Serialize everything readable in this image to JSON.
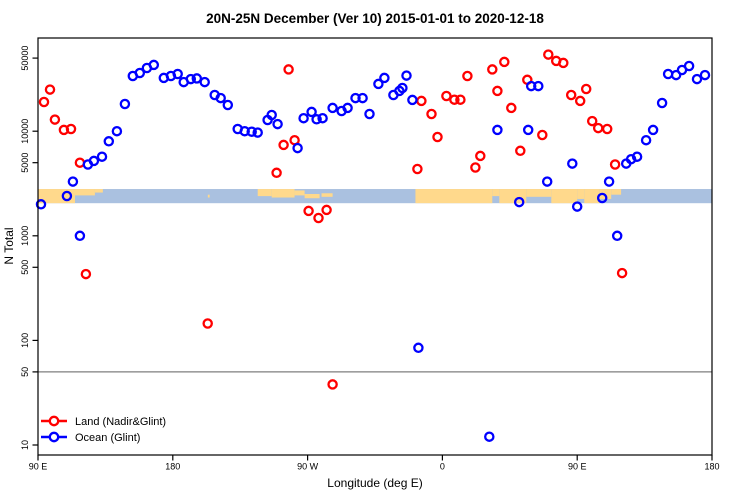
{
  "title": "20N-25N December (Ver 10)   2015-01-01 to 2020-12-18",
  "axes": {
    "x_label": "Longitude (deg E)",
    "y_label": "N Total",
    "x_ticks": [
      {
        "lon": 90,
        "label": "90 E"
      },
      {
        "lon": 180,
        "label": "180"
      },
      {
        "lon": 270,
        "label": "90 W"
      },
      {
        "lon": 360,
        "label": "0"
      },
      {
        "lon": 450,
        "label": "90 E"
      },
      {
        "lon": 540,
        "label": "180"
      }
    ],
    "y_ticks": [
      {
        "value": 50000,
        "label": "50000"
      },
      {
        "value": 10000,
        "label": "10000"
      },
      {
        "value": 5000,
        "label": "5000"
      },
      {
        "value": 1000,
        "label": "1000"
      },
      {
        "value": 500,
        "label": "500"
      },
      {
        "value": 100,
        "label": "100"
      },
      {
        "value": 50,
        "label": "50"
      },
      {
        "value": 10,
        "label": "10"
      }
    ]
  },
  "legend": [
    {
      "label": "Land (Nadir&Glint)",
      "color": "#ff0000"
    },
    {
      "label": "Ocean (Glint)",
      "color": "#0000ff"
    }
  ],
  "colors": {
    "land_series": "#ff0000",
    "ocean_series": "#0000ff",
    "band_ocean": "#aac1e0",
    "band_land": "#ffd98c",
    "ref_line": "#7f7f7f",
    "frame": "#000000"
  },
  "chart_data": {
    "type": "scatter",
    "title": "20N-25N December (Ver 10)   2015-01-01 to 2020-12-18",
    "xlabel": "Longitude (deg E)",
    "ylabel": "N Total",
    "x_axis": {
      "kind": "longitude_wrapped",
      "lon_start": 90,
      "lon_end": 540,
      "note": "continuous deg E: 90E..180..90W..0..90E..180"
    },
    "y_axis": {
      "kind": "log10",
      "min": 8,
      "max": 78000
    },
    "reference_line_y": 50,
    "map_band": {
      "description": "20N-25N latitude land/ocean strip",
      "value_top": 2800,
      "value_bottom": 2050,
      "land_segments": [
        {
          "lon0": 90,
          "lon1": 114.7,
          "top": 0,
          "bot": 1
        },
        {
          "lon0": 114.7,
          "lon1": 128,
          "top": 0,
          "bot": 0.45
        },
        {
          "lon0": 128,
          "lon1": 133.3,
          "top": 0,
          "bot": 0.25
        },
        {
          "lon0": 203.4,
          "lon1": 204.6,
          "top": 0.4,
          "bot": 0.6
        },
        {
          "lon0": 236.7,
          "lon1": 246,
          "top": 0,
          "bot": 0.5
        },
        {
          "lon0": 246,
          "lon1": 261.3,
          "top": 0,
          "bot": 0.6
        },
        {
          "lon0": 261.3,
          "lon1": 268,
          "top": 0.1,
          "bot": 0.45
        },
        {
          "lon0": 268,
          "lon1": 278,
          "top": 0.35,
          "bot": 0.65
        },
        {
          "lon0": 279.3,
          "lon1": 286.7,
          "top": 0.3,
          "bot": 0.55
        },
        {
          "lon0": 342,
          "lon1": 393.3,
          "top": 0,
          "bot": 1
        },
        {
          "lon0": 393.3,
          "lon1": 398,
          "top": 0,
          "bot": 0.5
        },
        {
          "lon0": 398,
          "lon1": 416,
          "top": 0,
          "bot": 1
        },
        {
          "lon0": 416,
          "lon1": 432.7,
          "top": 0,
          "bot": 0.55
        },
        {
          "lon0": 432.7,
          "lon1": 450,
          "top": 0,
          "bot": 1
        },
        {
          "lon0": 450,
          "lon1": 454.7,
          "top": 0,
          "bot": 0.7
        },
        {
          "lon0": 454.7,
          "lon1": 464.7,
          "top": 0,
          "bot": 1
        },
        {
          "lon0": 464.7,
          "lon1": 472.7,
          "top": 0,
          "bot": 0.7
        },
        {
          "lon0": 472.7,
          "lon1": 479.3,
          "top": 0,
          "bot": 0.4
        }
      ]
    },
    "series": [
      {
        "name": "Land (Nadir&Glint)",
        "color": "#ff0000",
        "points": [
          [
            94,
            19000
          ],
          [
            98,
            25000
          ],
          [
            101.3,
            12900
          ],
          [
            107.3,
            10300
          ],
          [
            112,
            10500
          ],
          [
            118,
            5000
          ],
          [
            122,
            430
          ],
          [
            203.3,
            145
          ],
          [
            249.3,
            4000
          ],
          [
            254,
            7400
          ],
          [
            257.3,
            39000
          ],
          [
            261.3,
            8200
          ],
          [
            270.7,
            1730
          ],
          [
            277.3,
            1480
          ],
          [
            282.7,
            1770
          ],
          [
            286.7,
            38
          ],
          [
            343.3,
            4350
          ],
          [
            346,
            19500
          ],
          [
            352.7,
            14600
          ],
          [
            356.7,
            8800
          ],
          [
            362.7,
            21700
          ],
          [
            368,
            20000
          ],
          [
            372,
            20000
          ],
          [
            376.7,
            33700
          ],
          [
            382,
            4500
          ],
          [
            385.3,
            5800
          ],
          [
            393.3,
            39000
          ],
          [
            396.7,
            24300
          ],
          [
            401.3,
            46000
          ],
          [
            406,
            16700
          ],
          [
            412,
            6500
          ],
          [
            416.7,
            31000
          ],
          [
            426.7,
            9200
          ],
          [
            430.7,
            54000
          ],
          [
            436,
            47000
          ],
          [
            440.7,
            45000
          ],
          [
            446,
            22200
          ],
          [
            452,
            19500
          ],
          [
            456,
            25300
          ],
          [
            460,
            12500
          ],
          [
            464,
            10700
          ],
          [
            470,
            10500
          ],
          [
            475.3,
            4800
          ],
          [
            480,
            440
          ]
        ]
      },
      {
        "name": "Ocean (Glint)",
        "color": "#0000ff",
        "points": [
          [
            92,
            2000
          ],
          [
            109.3,
            2400
          ],
          [
            113.3,
            3300
          ],
          [
            118,
            1000
          ],
          [
            123.3,
            4800
          ],
          [
            127.3,
            5200
          ],
          [
            132.7,
            5700
          ],
          [
            137.3,
            8000
          ],
          [
            142.7,
            10000
          ],
          [
            148,
            18200
          ],
          [
            153.3,
            33700
          ],
          [
            158,
            36000
          ],
          [
            162.7,
            40200
          ],
          [
            167.3,
            43000
          ],
          [
            174,
            32300
          ],
          [
            178.7,
            33700
          ],
          [
            183.3,
            35200
          ],
          [
            187.3,
            29500
          ],
          [
            192,
            31500
          ],
          [
            196,
            32000
          ],
          [
            201.3,
            29500
          ],
          [
            208,
            22200
          ],
          [
            212,
            20700
          ],
          [
            216.7,
            17800
          ],
          [
            223.3,
            10500
          ],
          [
            228,
            10000
          ],
          [
            232.7,
            9900
          ],
          [
            236.7,
            9700
          ],
          [
            243.3,
            12800
          ],
          [
            246,
            14300
          ],
          [
            250,
            11700
          ],
          [
            263.3,
            6900
          ],
          [
            267.3,
            13300
          ],
          [
            272.7,
            15300
          ],
          [
            276,
            13000
          ],
          [
            280,
            13300
          ],
          [
            286.7,
            16700
          ],
          [
            292.7,
            15600
          ],
          [
            296.7,
            16700
          ],
          [
            302,
            20700
          ],
          [
            306.7,
            20700
          ],
          [
            311.3,
            14600
          ],
          [
            317.3,
            28300
          ],
          [
            321.3,
            32300
          ],
          [
            327.3,
            22200
          ],
          [
            331.3,
            24300
          ],
          [
            333.3,
            25900
          ],
          [
            336,
            34000
          ],
          [
            340,
            19900
          ],
          [
            344,
            85
          ],
          [
            391.3,
            12
          ],
          [
            396.7,
            10300
          ],
          [
            411.3,
            2100
          ],
          [
            417.3,
            10300
          ],
          [
            419.3,
            27000
          ],
          [
            424,
            27000
          ],
          [
            430,
            3300
          ],
          [
            446.7,
            4900
          ],
          [
            450,
            1900
          ],
          [
            466.7,
            2300
          ],
          [
            471.3,
            3300
          ],
          [
            476.7,
            1000
          ],
          [
            482.7,
            4900
          ],
          [
            486,
            5400
          ],
          [
            490,
            5700
          ],
          [
            496,
            8200
          ],
          [
            500.7,
            10300
          ],
          [
            506.7,
            18600
          ],
          [
            510.7,
            35200
          ],
          [
            516,
            34400
          ],
          [
            520,
            38500
          ],
          [
            524.7,
            42000
          ],
          [
            530,
            31500
          ],
          [
            535.3,
            34400
          ]
        ]
      }
    ]
  }
}
